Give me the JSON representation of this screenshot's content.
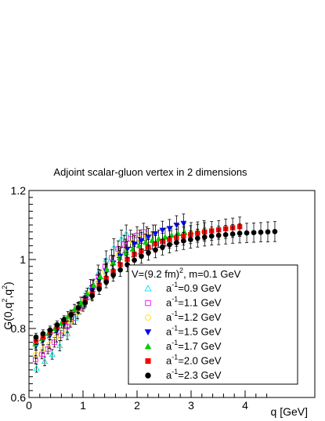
{
  "chart_data": {
    "type": "scatter",
    "title": "Adjoint scalar-gluon vertex in 2 dimensions",
    "xlabel": "q [GeV]",
    "ylabel_parts": {
      "base": "G(0,q",
      "exp1": "2",
      "mid": ",q",
      "exp2": "2",
      "end": ")"
    },
    "xlim": [
      0,
      5.0
    ],
    "ylim": [
      0.6,
      1.2
    ],
    "x_ticks": [
      "0",
      "1",
      "2",
      "3",
      "4"
    ],
    "y_ticks": [
      "0.6",
      "0.8",
      "1",
      "1.2"
    ],
    "grid": false,
    "legend_position": "bottom-right",
    "legend_header": {
      "pre": "V=(9.2 fm)",
      "exp": "2",
      "post": ", m=0.1 GeV"
    },
    "series": [
      {
        "name": "a-1=0.9 GeV",
        "label_base": "a",
        "label_exp": "-1",
        "label_rest": "=0.9 GeV",
        "marker": "triangle-open",
        "color": "#00e5e5",
        "x": [
          0.14,
          0.29,
          0.43,
          0.57,
          0.71,
          0.86,
          1.0,
          1.14,
          1.28,
          1.43,
          1.57,
          1.71,
          1.8
        ],
        "y": [
          0.685,
          0.705,
          0.725,
          0.75,
          0.785,
          0.83,
          0.87,
          0.92,
          0.96,
          1.0,
          1.035,
          1.06,
          1.075
        ],
        "err": [
          0.012,
          0.013,
          0.014,
          0.015,
          0.017,
          0.018,
          0.02,
          0.022,
          0.024,
          0.025,
          0.025,
          0.025,
          0.025
        ]
      },
      {
        "name": "a-1=1.1 GeV",
        "label_base": "a",
        "label_exp": "-1",
        "label_rest": "=1.1 GeV",
        "marker": "square-open",
        "color": "#ff00ff",
        "x": [
          0.12,
          0.24,
          0.35,
          0.47,
          0.59,
          0.71,
          0.82,
          0.94,
          1.06,
          1.18,
          1.29,
          1.41,
          1.53,
          1.65,
          1.76,
          1.88,
          2.0,
          2.12
        ],
        "y": [
          0.71,
          0.725,
          0.74,
          0.76,
          0.78,
          0.805,
          0.83,
          0.86,
          0.89,
          0.92,
          0.95,
          0.98,
          1.005,
          1.03,
          1.045,
          1.06,
          1.07,
          1.08
        ],
        "err": [
          0.012,
          0.013,
          0.013,
          0.014,
          0.015,
          0.016,
          0.017,
          0.018,
          0.019,
          0.02,
          0.021,
          0.022,
          0.023,
          0.024,
          0.025,
          0.025,
          0.025,
          0.025
        ]
      },
      {
        "name": "a-1=1.2 GeV",
        "label_base": "a",
        "label_exp": "-1",
        "label_rest": "=1.2 GeV",
        "marker": "circle-open",
        "color": "#ffdd00",
        "x": [
          0.13,
          0.26,
          0.38,
          0.51,
          0.64,
          0.77,
          0.9,
          1.02,
          1.15,
          1.28,
          1.41,
          1.54,
          1.66,
          1.79,
          1.92,
          2.05,
          2.18,
          2.3
        ],
        "y": [
          0.725,
          0.74,
          0.755,
          0.775,
          0.795,
          0.82,
          0.845,
          0.875,
          0.905,
          0.935,
          0.965,
          0.99,
          1.015,
          1.035,
          1.05,
          1.06,
          1.07,
          1.075
        ],
        "err": [
          0.012,
          0.012,
          0.013,
          0.014,
          0.015,
          0.016,
          0.017,
          0.018,
          0.019,
          0.02,
          0.021,
          0.022,
          0.023,
          0.024,
          0.024,
          0.025,
          0.025,
          0.025
        ]
      },
      {
        "name": "a-1=1.5 GeV",
        "label_base": "a",
        "label_exp": "-1",
        "label_rest": "=1.5 GeV",
        "marker": "triangle-down",
        "color": "#0000ff",
        "x": [
          0.13,
          0.26,
          0.39,
          0.52,
          0.65,
          0.78,
          0.91,
          1.04,
          1.17,
          1.3,
          1.43,
          1.56,
          1.69,
          1.82,
          1.95,
          2.08,
          2.21,
          2.34,
          2.47,
          2.6,
          2.73,
          2.86
        ],
        "y": [
          0.75,
          0.765,
          0.78,
          0.795,
          0.815,
          0.835,
          0.86,
          0.885,
          0.91,
          0.94,
          0.965,
          0.99,
          1.01,
          1.03,
          1.045,
          1.055,
          1.065,
          1.075,
          1.085,
          1.09,
          1.1,
          1.105
        ],
        "err": [
          0.012,
          0.012,
          0.013,
          0.013,
          0.014,
          0.015,
          0.016,
          0.017,
          0.018,
          0.019,
          0.02,
          0.021,
          0.022,
          0.023,
          0.024,
          0.024,
          0.025,
          0.025,
          0.026,
          0.026,
          0.027,
          0.027
        ]
      },
      {
        "name": "a-1=1.7 GeV",
        "label_base": "a",
        "label_exp": "-1",
        "label_rest": "=1.7 GeV",
        "marker": "triangle-up",
        "color": "#00cc00",
        "x": [
          0.12,
          0.24,
          0.36,
          0.48,
          0.6,
          0.72,
          0.84,
          0.96,
          1.08,
          1.2,
          1.32,
          1.44,
          1.56,
          1.68,
          1.8,
          1.92,
          2.04,
          2.16,
          2.28,
          2.4,
          2.52,
          2.64,
          2.76,
          2.88,
          3.0,
          3.12,
          3.24
        ],
        "y": [
          0.755,
          0.77,
          0.785,
          0.8,
          0.815,
          0.835,
          0.855,
          0.875,
          0.9,
          0.925,
          0.95,
          0.97,
          0.99,
          1.005,
          1.02,
          1.03,
          1.04,
          1.05,
          1.055,
          1.06,
          1.065,
          1.07,
          1.075,
          1.078,
          1.08,
          1.082,
          1.085
        ],
        "err": [
          0.012,
          0.012,
          0.012,
          0.013,
          0.013,
          0.014,
          0.015,
          0.016,
          0.017,
          0.018,
          0.019,
          0.02,
          0.021,
          0.022,
          0.022,
          0.023,
          0.024,
          0.024,
          0.025,
          0.025,
          0.026,
          0.026,
          0.026,
          0.027,
          0.027,
          0.027,
          0.028
        ]
      },
      {
        "name": "a-1=2.0 GeV",
        "label_base": "a",
        "label_exp": "-1",
        "label_rest": "=2.0 GeV",
        "marker": "square",
        "color": "#ff0000",
        "x": [
          0.13,
          0.26,
          0.39,
          0.52,
          0.65,
          0.78,
          0.91,
          1.04,
          1.17,
          1.3,
          1.43,
          1.56,
          1.69,
          1.82,
          1.95,
          2.08,
          2.21,
          2.34,
          2.47,
          2.6,
          2.73,
          2.86,
          2.99,
          3.12,
          3.25,
          3.38,
          3.51,
          3.64,
          3.77,
          3.9
        ],
        "y": [
          0.765,
          0.775,
          0.79,
          0.805,
          0.82,
          0.84,
          0.86,
          0.88,
          0.9,
          0.925,
          0.945,
          0.965,
          0.985,
          1.0,
          1.015,
          1.025,
          1.035,
          1.045,
          1.052,
          1.058,
          1.063,
          1.068,
          1.072,
          1.076,
          1.08,
          1.083,
          1.086,
          1.089,
          1.092,
          1.095
        ],
        "err": [
          0.012,
          0.012,
          0.012,
          0.012,
          0.013,
          0.013,
          0.014,
          0.015,
          0.016,
          0.017,
          0.018,
          0.019,
          0.02,
          0.021,
          0.022,
          0.022,
          0.023,
          0.024,
          0.024,
          0.025,
          0.025,
          0.026,
          0.026,
          0.026,
          0.027,
          0.027,
          0.027,
          0.028,
          0.028,
          0.028
        ]
      },
      {
        "name": "a-1=2.3 GeV",
        "label_base": "a",
        "label_exp": "-1",
        "label_rest": "=2.3 GeV",
        "marker": "circle",
        "color": "#000000",
        "x": [
          0.13,
          0.26,
          0.39,
          0.52,
          0.65,
          0.78,
          0.91,
          1.04,
          1.17,
          1.3,
          1.43,
          1.56,
          1.69,
          1.82,
          1.95,
          2.08,
          2.21,
          2.34,
          2.47,
          2.6,
          2.73,
          2.86,
          2.99,
          3.12,
          3.25,
          3.38,
          3.51,
          3.64,
          3.77,
          3.9,
          4.03,
          4.16,
          4.29,
          4.42,
          4.55
        ],
        "y": [
          0.775,
          0.785,
          0.795,
          0.81,
          0.825,
          0.84,
          0.86,
          0.875,
          0.895,
          0.915,
          0.935,
          0.955,
          0.97,
          0.985,
          0.998,
          1.01,
          1.02,
          1.028,
          1.036,
          1.043,
          1.049,
          1.054,
          1.058,
          1.062,
          1.065,
          1.068,
          1.07,
          1.072,
          1.074,
          1.076,
          1.077,
          1.078,
          1.079,
          1.08,
          1.081
        ],
        "err": [
          0.011,
          0.011,
          0.012,
          0.012,
          0.012,
          0.013,
          0.013,
          0.014,
          0.015,
          0.016,
          0.017,
          0.018,
          0.019,
          0.02,
          0.021,
          0.021,
          0.022,
          0.023,
          0.023,
          0.024,
          0.024,
          0.025,
          0.025,
          0.026,
          0.026,
          0.026,
          0.027,
          0.027,
          0.027,
          0.028,
          0.028,
          0.028,
          0.028,
          0.029,
          0.029
        ]
      }
    ]
  }
}
